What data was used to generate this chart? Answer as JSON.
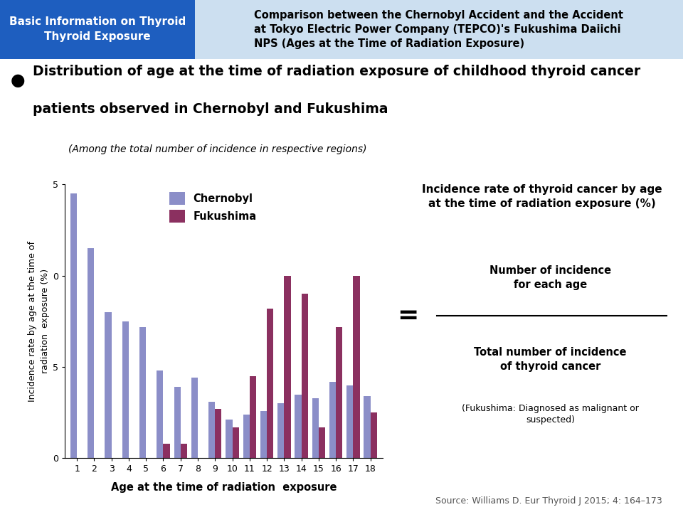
{
  "ages": [
    1,
    2,
    3,
    4,
    5,
    6,
    7,
    8,
    9,
    10,
    11,
    12,
    13,
    14,
    15,
    16,
    17,
    18
  ],
  "chernobyl": [
    14.5,
    11.5,
    8.0,
    7.5,
    7.2,
    4.8,
    3.9,
    4.4,
    3.1,
    2.1,
    2.4,
    2.6,
    3.0,
    3.5,
    3.3,
    4.2,
    4.0,
    3.4
  ],
  "fukushima": [
    0,
    0,
    0,
    0,
    0,
    0.8,
    0.8,
    0,
    2.7,
    1.7,
    4.5,
    8.2,
    10.0,
    9.0,
    1.7,
    7.2,
    10.0,
    2.5
  ],
  "chernobyl_color": "#8B8EC8",
  "fukushima_color": "#8B3060",
  "bar_width": 0.38,
  "ylim_max": 15,
  "header_left_text": "Basic Information on Thyroid\nThyroid Exposure",
  "header_right_text": "Comparison between the Chernobyl Accident and the Accident\nat Tokyo Electric Power Company (TEPCO)'s Fukushima Daiichi\nNPS (Ages at the Time of Radiation Exposure)",
  "title_line1": "Distribution of age at the time of radiation exposure of childhood thyroid cancer",
  "title_line2": "patients observed in Chernobyl and Fukushima",
  "subtitle": "(Among the total number of incidence in respective regions)",
  "ylabel": "Incidence rate by age at the time of\nradiation  exposure (%)",
  "xlabel": "Age at the time of radiation  exposure",
  "legend_labels": [
    "Chernobyl",
    "Fukushima"
  ],
  "annotation_title": "Incidence rate of thyroid cancer by age\nat the time of radiation exposure (%)",
  "annotation_numerator": "Number of incidence\nfor each age",
  "annotation_denominator": "Total number of incidence\nof thyroid cancer",
  "annotation_footnote": "(Fukushima: Diagnosed as malignant or\nsuspected)",
  "source_text": "Source: Williams D. Eur Thyroid J 2015; 4: 164–173",
  "header_left_bg": "#1E5EBF",
  "header_right_bg": "#CCDFF0"
}
